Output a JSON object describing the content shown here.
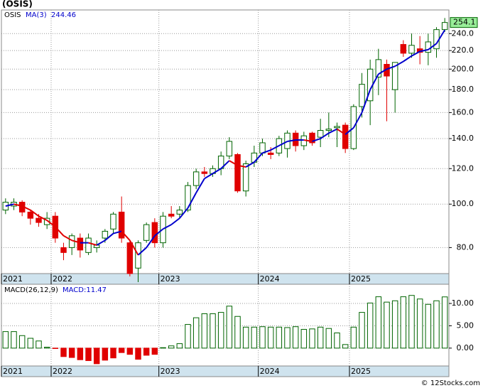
{
  "chart_data": [
    {
      "type": "candlestick",
      "title": "(OSIS)",
      "log_scale": true,
      "grid": true,
      "categories": [
        "2021",
        null,
        null,
        null,
        null,
        null,
        "2022",
        null,
        null,
        null,
        null,
        null,
        null,
        null,
        null,
        null,
        null,
        null,
        null,
        "2023",
        null,
        null,
        null,
        null,
        null,
        null,
        null,
        null,
        null,
        null,
        null,
        "2024",
        null,
        null,
        null,
        null,
        null,
        null,
        null,
        null,
        null,
        null,
        "2025",
        null,
        null,
        null,
        null,
        null,
        null,
        null,
        null,
        null,
        null,
        null
      ],
      "series": [
        {
          "name": "OSIS",
          "up_color": "#006400",
          "down_color": "#e00000",
          "open": [
            97,
            99,
            101,
            96,
            93,
            90,
            94,
            80,
            80,
            84,
            78,
            80,
            84,
            88,
            96,
            82,
            72,
            83,
            91,
            82,
            95,
            95,
            97,
            110,
            118,
            117,
            120,
            128,
            129,
            107,
            124,
            130,
            130,
            130,
            133,
            144,
            135,
            144,
            141,
            146,
            148,
            150,
            133,
            165,
            170,
            192,
            205,
            180,
            227,
            217,
            222,
            218,
            222,
            245
          ],
          "high": [
            103,
            103,
            102,
            97,
            95,
            96,
            96,
            82,
            86,
            86,
            86,
            83,
            88,
            96,
            104,
            83,
            83,
            91,
            93,
            96,
            99,
            99,
            112,
            120,
            121,
            122,
            131,
            141,
            130,
            125,
            135,
            140,
            134,
            142,
            146,
            146,
            145,
            145,
            155,
            160,
            152,
            152,
            167,
            196,
            210,
            222,
            210,
            207,
            232,
            240,
            237,
            240,
            248,
            260
          ],
          "low": [
            95,
            97,
            94,
            90,
            89,
            88,
            82,
            75,
            77,
            76,
            77,
            78,
            82,
            86,
            82,
            69,
            67,
            82,
            80,
            80,
            93,
            93,
            96,
            108,
            115,
            115,
            116,
            126,
            106,
            104,
            121,
            128,
            126,
            128,
            127,
            131,
            132,
            135,
            134,
            141,
            134,
            130,
            132,
            156,
            150,
            175,
            153,
            160,
            213,
            212,
            205,
            204,
            212,
            242
          ],
          "close": [
            101,
            101,
            96,
            93,
            91,
            93,
            84,
            78,
            85,
            79,
            84,
            81,
            87,
            95,
            84,
            70,
            82,
            90,
            82,
            94,
            94,
            97,
            110,
            118,
            117,
            120,
            128,
            138,
            107,
            123,
            130,
            137,
            129,
            140,
            144,
            135,
            142,
            137,
            146,
            147,
            149,
            133,
            165,
            185,
            200,
            210,
            193,
            207,
            217,
            226,
            218,
            230,
            245,
            254.1
          ]
        }
      ],
      "ma": {
        "name": "MA(3)",
        "up_color": "#0000cc",
        "down_color": "#e00000",
        "values": [
          99,
          100,
          99,
          97,
          94,
          92,
          89,
          85,
          83,
          82,
          82,
          81,
          83,
          86,
          87,
          83,
          77,
          80,
          85,
          88,
          90,
          93,
          98,
          106,
          114,
          117,
          120,
          125,
          122,
          121,
          124,
          130,
          132,
          135,
          138,
          139,
          139,
          138,
          140,
          144,
          147,
          143,
          148,
          160,
          180,
          195,
          200,
          203,
          208,
          214,
          219,
          221,
          228,
          244.46
        ]
      },
      "ylim": [
        70,
        271
      ],
      "yticks": [
        {
          "value": 80,
          "label": "80.0"
        },
        {
          "value": 100,
          "label": "100.0"
        },
        {
          "value": 120,
          "label": "120.0"
        },
        {
          "value": 140,
          "label": "140.0"
        },
        {
          "value": 160,
          "label": "160.0"
        },
        {
          "value": 180,
          "label": "180.0"
        },
        {
          "value": 200,
          "label": "200.0"
        },
        {
          "value": 220,
          "label": "220.0"
        },
        {
          "value": 240,
          "label": "240.0"
        }
      ]
    },
    {
      "type": "bar",
      "title": "MACD(26,12,9)",
      "subtitle": "MACD:11.47",
      "grid": true,
      "up_color": "#006400",
      "down_color": "#e00000",
      "categories": [
        "2021",
        null,
        null,
        null,
        null,
        null,
        "2022",
        null,
        null,
        null,
        null,
        null,
        null,
        null,
        null,
        null,
        null,
        null,
        null,
        "2023",
        null,
        null,
        null,
        null,
        null,
        null,
        null,
        null,
        null,
        null,
        null,
        "2024",
        null,
        null,
        null,
        null,
        null,
        null,
        null,
        null,
        null,
        null,
        "2025",
        null,
        null,
        null,
        null,
        null,
        null,
        null,
        null,
        null,
        null,
        null
      ],
      "values": [
        3.7,
        3.7,
        2.8,
        2.2,
        1.6,
        0.2,
        -0.1,
        -1.9,
        -2.1,
        -2.6,
        -2.8,
        -3.5,
        -2.7,
        -2.2,
        -1.0,
        -1.4,
        -2.5,
        -1.6,
        -1.4,
        0.1,
        0.5,
        1.0,
        5.3,
        6.8,
        7.7,
        7.7,
        8.0,
        9.4,
        7.1,
        4.7,
        4.7,
        4.8,
        4.7,
        4.7,
        4.6,
        4.8,
        4.2,
        4.3,
        4.7,
        4.4,
        3.4,
        0.8,
        4.7,
        8.0,
        10.1,
        11.5,
        10.3,
        10.6,
        11.5,
        11.8,
        11.0,
        9.8,
        10.6,
        11.47
      ],
      "ylim": [
        -4,
        14.3
      ],
      "yticks": [
        {
          "value": 0,
          "label": "0.00"
        },
        {
          "value": 5,
          "label": "5.00"
        },
        {
          "value": 10,
          "label": "10.00"
        }
      ]
    }
  ],
  "footer": "© 12Stocks.com"
}
